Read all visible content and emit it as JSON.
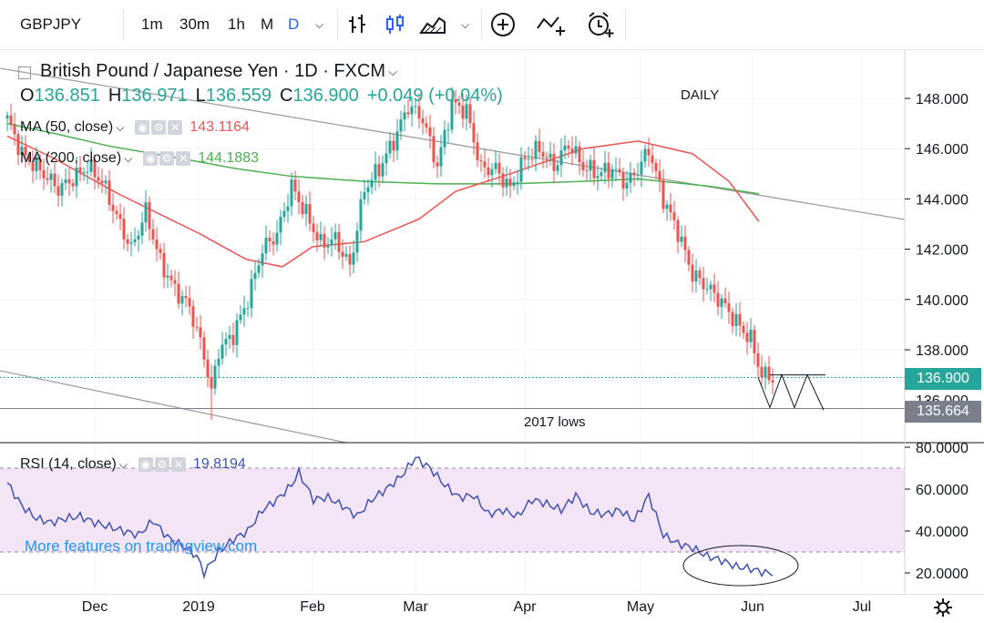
{
  "toolbar": {
    "symbol": "GBPJPY",
    "intervals": [
      "1m",
      "30m",
      "1h",
      "M",
      "D"
    ],
    "active_interval": "D",
    "icons": [
      "chevron-down-icon",
      "bar-chart-icon",
      "candles-icon",
      "area-chart-icon",
      "chevron-down-icon",
      "add-indicator-icon",
      "compare-icon",
      "alert-icon"
    ]
  },
  "legend": {
    "title": "British Pound / Japanese Yen · 1D · FXCM",
    "ohlc": {
      "o_label": "O",
      "o": "136.851",
      "h_label": "H",
      "h": "136.971",
      "l_label": "L",
      "l": "136.559",
      "c_label": "C",
      "c": "136.900",
      "change": "+0.049 (+0.04%)"
    },
    "ma50": {
      "label": "MA (50, close)",
      "value": "143.1164",
      "color": "#ef5350"
    },
    "ma200": {
      "label": "MA (200, close)",
      "value": "144.1883",
      "color": "#4caf50"
    }
  },
  "annotations": {
    "daily": "DAILY",
    "lows": "2017 lows"
  },
  "price_axis": {
    "ticks": [
      "148.000",
      "146.000",
      "144.000",
      "142.000",
      "140.000",
      "138.000"
    ],
    "partial_tick": "136.000",
    "last_price": "136.900",
    "last_price_color": "#26a69a",
    "level_label": "135.664",
    "level_color": "#7b7f8a"
  },
  "rsi": {
    "label": "RSI (14, close)",
    "value": "19.8194",
    "ticks": [
      "80.0000",
      "60.0000",
      "40.0000",
      "20.0000"
    ],
    "band": [
      30,
      70
    ]
  },
  "x_axis": {
    "labels": [
      "Dec",
      "2019",
      "Feb",
      "Mar",
      "Apr",
      "May",
      "Jun",
      "Jul"
    ]
  },
  "watermark": "More features on tradingview.com",
  "colors": {
    "up": "#26a69a",
    "down": "#ef5350",
    "ma50": "#ef5350",
    "ma200": "#4caf50",
    "rsi": "#3f51b5",
    "band": "#f3e5f5",
    "watermark": "#2196f3"
  },
  "chart_data": {
    "type": "candlestick",
    "title": "British Pound / Japanese Yen · 1D · FXCM",
    "ylim": [
      135.2,
      149.2
    ],
    "last_close": 136.9,
    "level_2017_lows": 135.664,
    "series": [
      {
        "name": "MA (50, close)",
        "x": [
          "Dec",
          "2019",
          "Feb",
          "Mar",
          "Apr",
          "May",
          "Jun"
        ],
        "values": [
          145.6,
          141.2,
          142.1,
          141.4,
          146.0,
          146.2,
          143.1
        ]
      },
      {
        "name": "MA (200, close)",
        "x": [
          "Dec",
          "2019",
          "Feb",
          "Mar",
          "Apr",
          "May",
          "Jun"
        ],
        "values": [
          146.9,
          145.7,
          144.9,
          144.7,
          144.6,
          144.8,
          144.2
        ]
      },
      {
        "name": "RSI (14, close)",
        "x": [
          "Dec",
          "2019",
          "Feb",
          "Mar",
          "Apr",
          "May",
          "Jun"
        ],
        "values": [
          52,
          20,
          65,
          75,
          50,
          45,
          20
        ]
      }
    ],
    "close_path": [
      [
        0,
        147.2
      ],
      [
        4,
        145.8
      ],
      [
        10,
        145.0
      ],
      [
        14,
        144.4
      ],
      [
        18,
        144.8
      ],
      [
        22,
        145.3
      ],
      [
        26,
        144.7
      ],
      [
        30,
        143.3
      ],
      [
        34,
        142.0
      ],
      [
        38,
        143.5
      ],
      [
        42,
        141.5
      ],
      [
        46,
        140.4
      ],
      [
        50,
        139.7
      ],
      [
        54,
        137.8
      ],
      [
        56,
        136.3
      ],
      [
        58,
        138.0
      ],
      [
        62,
        138.6
      ],
      [
        66,
        140.0
      ],
      [
        70,
        142.0
      ],
      [
        74,
        142.6
      ],
      [
        78,
        144.5
      ],
      [
        82,
        143.4
      ],
      [
        86,
        142.2
      ],
      [
        90,
        142.4
      ],
      [
        94,
        141.3
      ],
      [
        98,
        144.4
      ],
      [
        102,
        145.2
      ],
      [
        106,
        146.3
      ],
      [
        110,
        147.7
      ],
      [
        114,
        147.2
      ],
      [
        118,
        145.3
      ],
      [
        122,
        147.8
      ],
      [
        126,
        147.5
      ],
      [
        130,
        145.2
      ],
      [
        134,
        145.2
      ],
      [
        138,
        144.4
      ],
      [
        142,
        145.6
      ],
      [
        146,
        146.0
      ],
      [
        150,
        145.3
      ],
      [
        154,
        146.2
      ],
      [
        158,
        145.3
      ],
      [
        162,
        145.0
      ],
      [
        166,
        145.2
      ],
      [
        170,
        144.6
      ],
      [
        174,
        145.4
      ],
      [
        176,
        146.0
      ],
      [
        180,
        144.0
      ],
      [
        184,
        142.7
      ],
      [
        188,
        141.0
      ],
      [
        192,
        140.5
      ],
      [
        196,
        139.9
      ],
      [
        200,
        139.1
      ],
      [
        204,
        138.4
      ],
      [
        207,
        137.0
      ],
      [
        210,
        136.9
      ]
    ],
    "rsi_path": [
      [
        0,
        63
      ],
      [
        4,
        52
      ],
      [
        8,
        46
      ],
      [
        12,
        44
      ],
      [
        16,
        46
      ],
      [
        20,
        47
      ],
      [
        24,
        44
      ],
      [
        28,
        42
      ],
      [
        32,
        40
      ],
      [
        36,
        38
      ],
      [
        40,
        45
      ],
      [
        44,
        37
      ],
      [
        48,
        33
      ],
      [
        52,
        28
      ],
      [
        54,
        20
      ],
      [
        58,
        30
      ],
      [
        62,
        36
      ],
      [
        66,
        40
      ],
      [
        70,
        50
      ],
      [
        74,
        55
      ],
      [
        78,
        62
      ],
      [
        80,
        68
      ],
      [
        84,
        55
      ],
      [
        88,
        56
      ],
      [
        92,
        52
      ],
      [
        96,
        47
      ],
      [
        100,
        55
      ],
      [
        104,
        60
      ],
      [
        108,
        66
      ],
      [
        112,
        75
      ],
      [
        116,
        70
      ],
      [
        120,
        62
      ],
      [
        124,
        56
      ],
      [
        128,
        57
      ],
      [
        132,
        48
      ],
      [
        136,
        50
      ],
      [
        140,
        47
      ],
      [
        144,
        55
      ],
      [
        148,
        53
      ],
      [
        152,
        50
      ],
      [
        156,
        57
      ],
      [
        160,
        49
      ],
      [
        164,
        48
      ],
      [
        168,
        50
      ],
      [
        172,
        45
      ],
      [
        176,
        57
      ],
      [
        180,
        38
      ],
      [
        184,
        34
      ],
      [
        188,
        32
      ],
      [
        192,
        28
      ],
      [
        196,
        26
      ],
      [
        200,
        23
      ],
      [
        204,
        22
      ],
      [
        208,
        20
      ],
      [
        210,
        20
      ]
    ]
  }
}
